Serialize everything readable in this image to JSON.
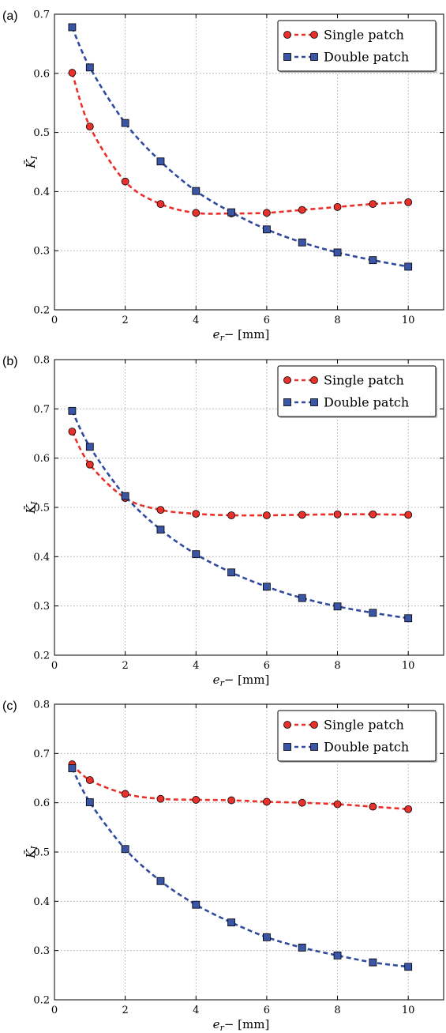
{
  "colors": {
    "single": "#e8312b",
    "double": "#3b55a6",
    "single_line": "#e8312b",
    "double_line": "#2f4a9e"
  },
  "chart_data": [
    {
      "type": "line",
      "panel_label": "(a)",
      "xlabel": "e_r− [mm]",
      "ylabel": "K̄_I",
      "xlim": [
        0,
        11
      ],
      "ylim": [
        0.2,
        0.7
      ],
      "xticks": [
        0,
        2,
        4,
        6,
        8,
        10
      ],
      "yticks": [
        0.2,
        0.3,
        0.4,
        0.5,
        0.6,
        0.7
      ],
      "grid": true,
      "legend_position": "top-right",
      "series": [
        {
          "name": "Single patch",
          "marker": "circle",
          "x": [
            0.5,
            1,
            2,
            3,
            4,
            5,
            6,
            7,
            8,
            9,
            10
          ],
          "y": [
            0.601,
            0.51,
            0.417,
            0.379,
            0.364,
            0.363,
            0.364,
            0.369,
            0.374,
            0.379,
            0.382
          ]
        },
        {
          "name": "Double patch",
          "marker": "square",
          "x": [
            0.5,
            1,
            2,
            3,
            4,
            5,
            6,
            7,
            8,
            9,
            10
          ],
          "y": [
            0.678,
            0.61,
            0.516,
            0.451,
            0.401,
            0.365,
            0.336,
            0.314,
            0.297,
            0.284,
            0.273
          ]
        }
      ]
    },
    {
      "type": "line",
      "panel_label": "(b)",
      "xlabel": "e_r− [mm]",
      "ylabel": "K̄_I",
      "xlim": [
        0,
        11
      ],
      "ylim": [
        0.2,
        0.8
      ],
      "xticks": [
        0,
        2,
        4,
        6,
        8,
        10
      ],
      "yticks": [
        0.2,
        0.3,
        0.4,
        0.5,
        0.6,
        0.7,
        0.8
      ],
      "grid": true,
      "legend_position": "top-right",
      "series": [
        {
          "name": "Single patch",
          "marker": "circle",
          "x": [
            0.5,
            1,
            2,
            3,
            4,
            5,
            6,
            7,
            8,
            9,
            10
          ],
          "y": [
            0.654,
            0.587,
            0.519,
            0.495,
            0.487,
            0.484,
            0.484,
            0.485,
            0.486,
            0.486,
            0.485
          ]
        },
        {
          "name": "Double patch",
          "marker": "square",
          "x": [
            0.5,
            1,
            2,
            3,
            4,
            5,
            6,
            7,
            8,
            9,
            10
          ],
          "y": [
            0.696,
            0.623,
            0.523,
            0.455,
            0.405,
            0.368,
            0.339,
            0.316,
            0.299,
            0.286,
            0.275
          ]
        }
      ]
    },
    {
      "type": "line",
      "panel_label": "(c)",
      "xlabel": "e_r− [mm]",
      "ylabel": "K̄_I",
      "xlim": [
        0,
        11
      ],
      "ylim": [
        0.2,
        0.8
      ],
      "xticks": [
        0,
        2,
        4,
        6,
        8,
        10
      ],
      "yticks": [
        0.2,
        0.3,
        0.4,
        0.5,
        0.6,
        0.7,
        0.8
      ],
      "grid": true,
      "legend_position": "top-right",
      "series": [
        {
          "name": "Single patch",
          "marker": "circle",
          "x": [
            0.5,
            1,
            2,
            3,
            4,
            5,
            6,
            7,
            8,
            9,
            10
          ],
          "y": [
            0.678,
            0.646,
            0.618,
            0.608,
            0.606,
            0.605,
            0.602,
            0.6,
            0.597,
            0.592,
            0.587
          ]
        },
        {
          "name": "Double patch",
          "marker": "square",
          "x": [
            0.5,
            1,
            2,
            3,
            4,
            5,
            6,
            7,
            8,
            9,
            10
          ],
          "y": [
            0.67,
            0.601,
            0.506,
            0.441,
            0.393,
            0.357,
            0.327,
            0.306,
            0.29,
            0.276,
            0.267
          ]
        }
      ]
    }
  ]
}
